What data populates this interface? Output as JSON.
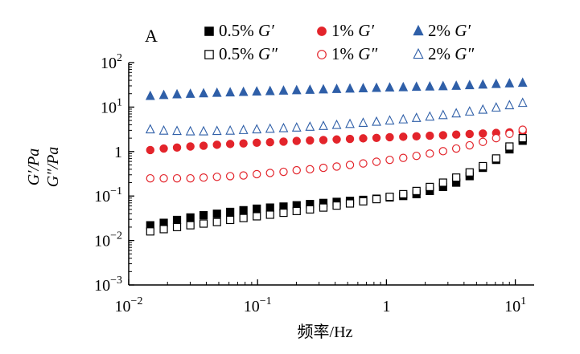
{
  "chart_data": {
    "type": "scatter",
    "panel_label": "A",
    "title": "",
    "xlabel": "频率/Hz",
    "ylabel_line1": "G′/Pa",
    "ylabel_line2": "G″/Pa",
    "x_scale": "log",
    "y_scale": "log",
    "xlim": [
      0.01,
      14
    ],
    "ylim": [
      0.001,
      100
    ],
    "x_ticks": [
      {
        "value": 0.01,
        "base": "10",
        "exp": "−2"
      },
      {
        "value": 0.1,
        "base": "10",
        "exp": "−1"
      },
      {
        "value": 1,
        "base": "1",
        "exp": ""
      },
      {
        "value": 10,
        "base": "10",
        "exp": "1"
      }
    ],
    "y_ticks": [
      {
        "value": 0.001,
        "base": "10",
        "exp": "−3"
      },
      {
        "value": 0.01,
        "base": "10",
        "exp": "−2"
      },
      {
        "value": 0.1,
        "base": "10",
        "exp": "−1"
      },
      {
        "value": 1,
        "base": "1",
        "exp": ""
      },
      {
        "value": 10,
        "base": "10",
        "exp": "1"
      },
      {
        "value": 100,
        "base": "10",
        "exp": "2"
      }
    ],
    "grid": false,
    "legend_position": "top",
    "series": [
      {
        "name": "0.5% G′",
        "conc": "0.5%",
        "modulus": "G′",
        "marker": "square-filled",
        "color": "#000000",
        "x": [
          0.0147,
          0.0187,
          0.0237,
          0.0301,
          0.0381,
          0.0484,
          0.0613,
          0.0777,
          0.0986,
          0.125,
          0.159,
          0.201,
          0.255,
          0.324,
          0.411,
          0.521,
          0.66,
          0.837,
          1.06,
          1.35,
          1.71,
          2.17,
          2.75,
          3.48,
          4.42,
          5.6,
          7.1,
          9.01,
          11.4
        ],
        "y": [
          0.022,
          0.025,
          0.029,
          0.033,
          0.037,
          0.04,
          0.044,
          0.048,
          0.052,
          0.055,
          0.058,
          0.062,
          0.066,
          0.07,
          0.074,
          0.078,
          0.082,
          0.087,
          0.093,
          0.1,
          0.11,
          0.13,
          0.16,
          0.2,
          0.28,
          0.43,
          0.65,
          1.12,
          1.75
        ]
      },
      {
        "name": "1% G′",
        "conc": "1%",
        "modulus": "G′",
        "marker": "circle-filled",
        "color": "#e3242b",
        "x": [
          0.0147,
          0.0187,
          0.0237,
          0.0301,
          0.0381,
          0.0484,
          0.0613,
          0.0777,
          0.0986,
          0.125,
          0.159,
          0.201,
          0.255,
          0.324,
          0.411,
          0.521,
          0.66,
          0.837,
          1.06,
          1.35,
          1.71,
          2.17,
          2.75,
          3.48,
          4.42,
          5.6,
          7.1,
          9.01,
          11.4
        ],
        "y": [
          1.08,
          1.17,
          1.23,
          1.3,
          1.35,
          1.42,
          1.48,
          1.52,
          1.58,
          1.62,
          1.67,
          1.73,
          1.78,
          1.82,
          1.87,
          1.92,
          1.98,
          2.03,
          2.1,
          2.15,
          2.2,
          2.27,
          2.33,
          2.4,
          2.48,
          2.55,
          2.62,
          2.7,
          2.8
        ]
      },
      {
        "name": "2% G′",
        "conc": "2%",
        "modulus": "G′",
        "marker": "triangle-filled",
        "color": "#2f5fa8",
        "x": [
          0.0147,
          0.0187,
          0.0237,
          0.0301,
          0.0381,
          0.0484,
          0.0613,
          0.0777,
          0.0986,
          0.125,
          0.159,
          0.201,
          0.255,
          0.324,
          0.411,
          0.521,
          0.66,
          0.837,
          1.06,
          1.35,
          1.71,
          2.17,
          2.75,
          3.48,
          4.42,
          5.6,
          7.1,
          9.01,
          11.4
        ],
        "y": [
          17.5,
          18.3,
          19.0,
          19.5,
          20.0,
          20.5,
          21.0,
          21.5,
          22.0,
          22.5,
          23.0,
          23.5,
          24.0,
          24.5,
          25.0,
          25.5,
          26.0,
          26.5,
          27.0,
          27.5,
          28.0,
          28.5,
          29.0,
          29.5,
          30.5,
          31.5,
          32.5,
          33.5,
          34.5
        ]
      },
      {
        "name": "0.5% G″",
        "conc": "0.5%",
        "modulus": "G″",
        "marker": "square-open",
        "color": "#000000",
        "x": [
          0.0147,
          0.0187,
          0.0237,
          0.0301,
          0.0381,
          0.0484,
          0.0613,
          0.0777,
          0.0986,
          0.125,
          0.159,
          0.201,
          0.255,
          0.324,
          0.411,
          0.521,
          0.66,
          0.837,
          1.06,
          1.35,
          1.71,
          2.17,
          2.75,
          3.48,
          4.42,
          5.6,
          7.1,
          9.01,
          11.4
        ],
        "y": [
          0.016,
          0.018,
          0.02,
          0.022,
          0.024,
          0.026,
          0.029,
          0.032,
          0.035,
          0.038,
          0.042,
          0.046,
          0.05,
          0.055,
          0.061,
          0.068,
          0.076,
          0.085,
          0.096,
          0.11,
          0.13,
          0.16,
          0.2,
          0.26,
          0.34,
          0.47,
          0.7,
          1.3,
          2.0
        ]
      },
      {
        "name": "1% G″",
        "conc": "1%",
        "modulus": "G″",
        "marker": "circle-open",
        "color": "#e3242b",
        "x": [
          0.0147,
          0.0187,
          0.0237,
          0.0301,
          0.0381,
          0.0484,
          0.0613,
          0.0777,
          0.0986,
          0.125,
          0.159,
          0.201,
          0.255,
          0.324,
          0.411,
          0.521,
          0.66,
          0.837,
          1.06,
          1.35,
          1.71,
          2.17,
          2.75,
          3.48,
          4.42,
          5.6,
          7.1,
          9.01,
          11.4
        ],
        "y": [
          0.25,
          0.25,
          0.25,
          0.25,
          0.26,
          0.27,
          0.28,
          0.29,
          0.31,
          0.33,
          0.35,
          0.38,
          0.4,
          0.43,
          0.46,
          0.5,
          0.54,
          0.59,
          0.65,
          0.72,
          0.8,
          0.9,
          1.02,
          1.17,
          1.38,
          1.65,
          2.0,
          2.5,
          3.1
        ]
      },
      {
        "name": "2% G″",
        "conc": "2%",
        "modulus": "G″",
        "marker": "triangle-open",
        "color": "#2f5fa8",
        "x": [
          0.0147,
          0.0187,
          0.0237,
          0.0301,
          0.0381,
          0.0484,
          0.0613,
          0.0777,
          0.0986,
          0.125,
          0.159,
          0.201,
          0.255,
          0.324,
          0.411,
          0.521,
          0.66,
          0.837,
          1.06,
          1.35,
          1.71,
          2.17,
          2.75,
          3.48,
          4.42,
          5.6,
          7.1,
          9.01,
          11.4
        ],
        "y": [
          3.1,
          2.9,
          2.85,
          2.8,
          2.8,
          2.85,
          2.9,
          3.0,
          3.1,
          3.2,
          3.3,
          3.4,
          3.55,
          3.7,
          3.9,
          4.1,
          4.35,
          4.6,
          4.9,
          5.2,
          5.6,
          6.0,
          6.5,
          7.1,
          7.8,
          8.6,
          9.6,
          10.8,
          12.2
        ]
      }
    ]
  }
}
